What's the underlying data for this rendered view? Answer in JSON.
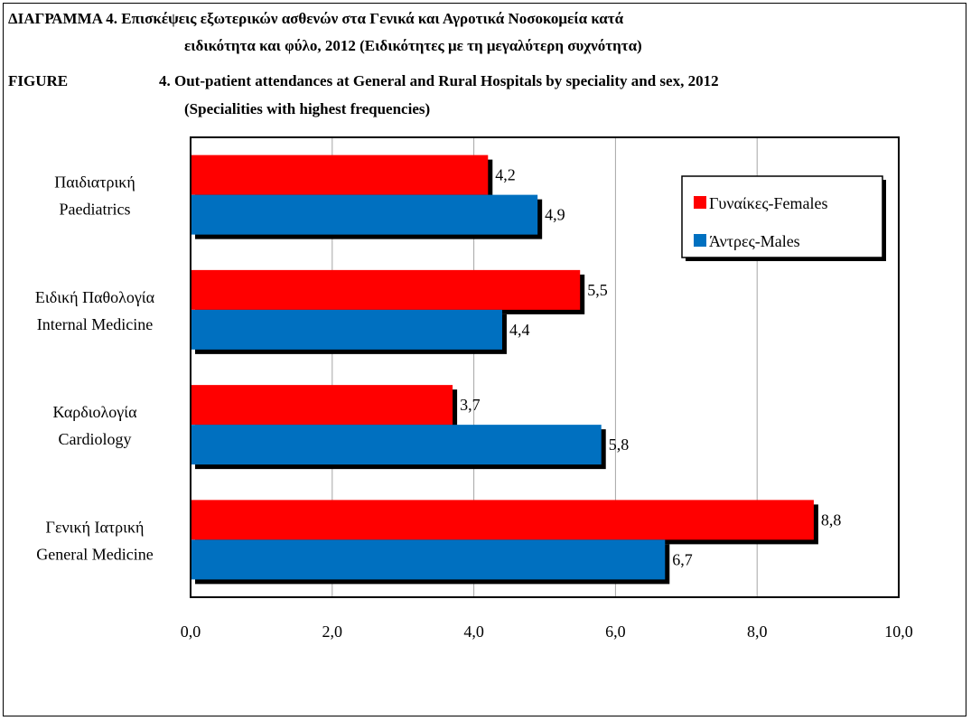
{
  "titles": {
    "greek_line1": "ΔΙΑΓΡΑΜΜΑ 4.  Επισκέψεις εξωτερικών ασθενών στα Γενικά και Αγροτικά Νοσοκομεία κατά",
    "greek_line2": "ειδικότητα και φύλο, 2012 (Ειδικότητες με τη μεγαλύτερη συχνότητα)",
    "english_label": "FIGURE",
    "english_line1": "4.  Out-patient attendances at General and Rural Hospitals by speciality and sex, 2012",
    "english_line2": "(Specialities with highest frequencies)"
  },
  "chart_data": {
    "type": "bar",
    "orientation": "horizontal",
    "categories": [
      {
        "greek": "Παιδιατρική",
        "english": "Paediatrics"
      },
      {
        "greek": "Ειδική Παθολογία",
        "english": "Internal Medicine"
      },
      {
        "greek": "Καρδιολογία",
        "english": "Cardiology"
      },
      {
        "greek": "Γενική Ιατρική",
        "english": "General Medicine"
      }
    ],
    "series": [
      {
        "name": "Γυναίκες-Females",
        "color": "#ff0000",
        "values": [
          4.2,
          5.5,
          3.7,
          8.8
        ],
        "labels": [
          "4,2",
          "5,5",
          "3,7",
          "8,8"
        ]
      },
      {
        "name": "Άντρες-Males",
        "color": "#0070c0",
        "values": [
          4.9,
          4.4,
          5.8,
          6.7
        ],
        "labels": [
          "4,9",
          "4,4",
          "5,8",
          "6,7"
        ]
      }
    ],
    "xlim": [
      0,
      10
    ],
    "xticks": [
      0,
      2,
      4,
      6,
      8,
      10
    ],
    "xtick_labels": [
      "0,0",
      "2,0",
      "4,0",
      "6,0",
      "8,0",
      "10,0"
    ],
    "grid": "vertical",
    "legend_position": "top-right"
  }
}
